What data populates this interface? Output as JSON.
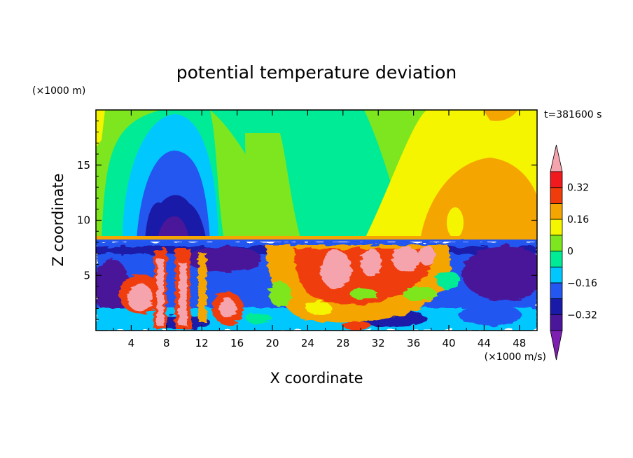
{
  "chart_data": {
    "type": "heatmap",
    "title": "potential temperature deviation",
    "xlabel": "X coordinate",
    "ylabel": "Z coordinate",
    "x_unit": "(×1000 m/s)",
    "y_unit": "(×1000 m)",
    "time_label": "t=381600 s",
    "xlim": [
      0,
      50
    ],
    "ylim": [
      0,
      20
    ],
    "x_ticks": [
      4,
      8,
      12,
      16,
      20,
      24,
      28,
      32,
      36,
      40,
      44,
      48
    ],
    "y_ticks": [
      5,
      10,
      15
    ],
    "colorbar": {
      "levels": [
        -0.4,
        -0.32,
        -0.24,
        -0.16,
        -0.08,
        0,
        0.08,
        0.16,
        0.24,
        0.32,
        0.4
      ],
      "tick_values": [
        0.32,
        0.16,
        0,
        -0.16,
        -0.32
      ],
      "tick_labels": [
        "0.32",
        "0.16",
        "0",
        "−0.16",
        "−0.32"
      ],
      "under_color": "#7d1fb0",
      "over_color": "#f5a3ad",
      "colors": [
        "#4a169a",
        "#1a1aa8",
        "#2457f0",
        "#00c8ff",
        "#00eb96",
        "#7ee61e",
        "#f5f500",
        "#f5a500",
        "#f03c0a",
        "#f0191e"
      ]
    },
    "regions": {
      "upper_layer_top_z": 20,
      "inversion_z": 8.2,
      "description_fields": [
        {
          "name": "cold-dome-left",
          "x_range": [
            2,
            14
          ],
          "z_range": [
            8.2,
            19.5
          ],
          "core_value": -0.32
        },
        {
          "name": "warm-dome-right",
          "x_range": [
            37,
            50
          ],
          "z_range": [
            8.2,
            19.5
          ],
          "core_value": 0.16
        },
        {
          "name": "neutral-center",
          "x_range": [
            17,
            37
          ],
          "z_range": [
            8.2,
            19.5
          ],
          "core_value": 0.0
        }
      ]
    }
  }
}
